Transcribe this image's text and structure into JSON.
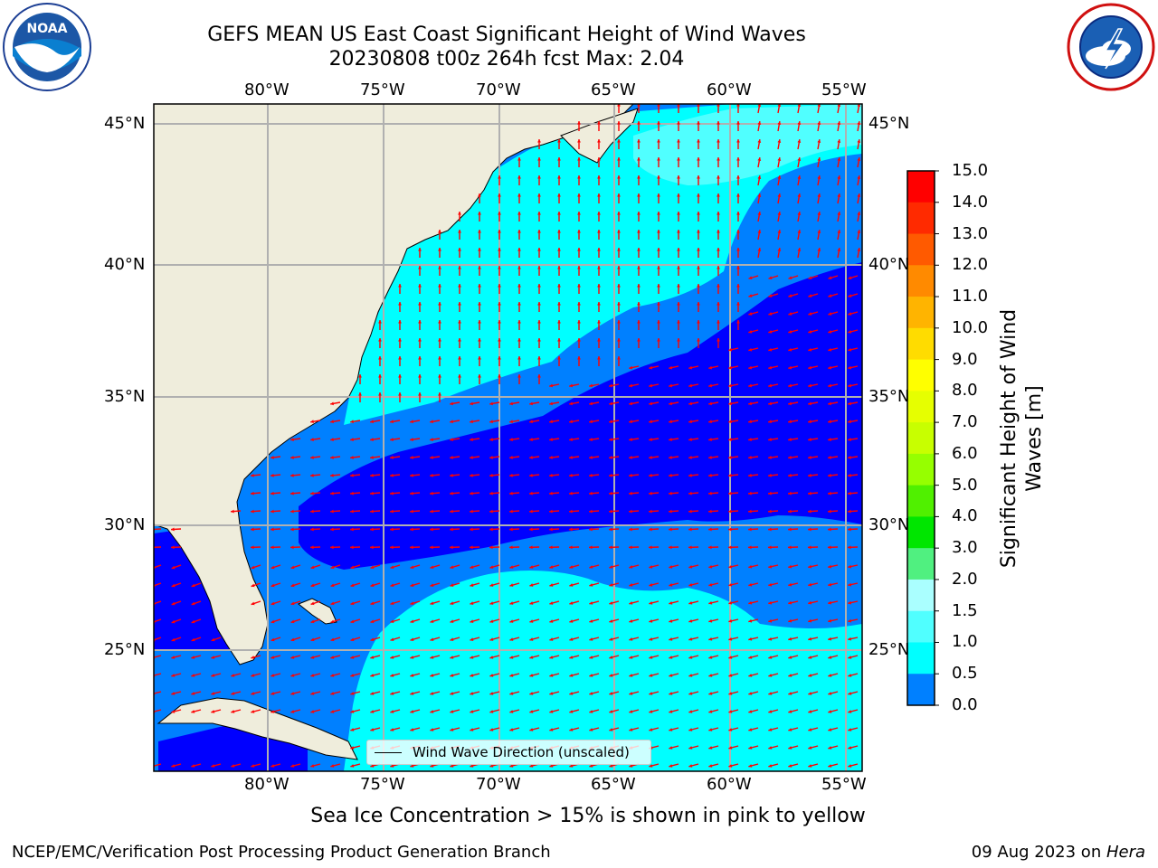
{
  "title_line1": "GEFS MEAN US East Coast Significant Height of Wind Waves",
  "title_line2": "20230808 t00z 264h fcst   Max: 2.04",
  "logos": {
    "left": "noaa-logo",
    "right": "national-weather-service-logo"
  },
  "map": {
    "lon_ticks": [
      "80°W",
      "75°W",
      "70°W",
      "65°W",
      "60°W",
      "55°W"
    ],
    "lat_ticks": [
      "45°N",
      "40°N",
      "35°N",
      "30°N",
      "25°N"
    ],
    "legend_label": "Wind Wave Direction (unscaled)",
    "arrow_color": "#ff0000",
    "land_color": "#efeddc"
  },
  "colorbar": {
    "title_line1": "Significant Height of Wind",
    "title_line2": "Waves [m]",
    "levels": [
      "15.0",
      "14.0",
      "13.0",
      "12.0",
      "11.0",
      "10.0",
      "9.0",
      "8.0",
      "7.0",
      "6.0",
      "5.0",
      "4.0",
      "3.0",
      "2.0",
      "1.5",
      "1.0",
      "0.5",
      "0.0"
    ],
    "colors": [
      "#ff0000",
      "#ff2a00",
      "#ff5a00",
      "#ff8a00",
      "#ffb400",
      "#ffdc00",
      "#ffff00",
      "#e6ff00",
      "#c8ff00",
      "#96ff00",
      "#50f000",
      "#00e600",
      "#50f080",
      "#aaffff",
      "#50ffff",
      "#00ffff",
      "#0080ff",
      "#0000ff"
    ]
  },
  "caption": "Sea Ice Concentration > 15% is shown in pink to yellow",
  "credit": "NCEP/EMC/Verification Post Processing Product Generation Branch",
  "date_prefix": "09 Aug 2023 on ",
  "date_host": "Hera"
}
